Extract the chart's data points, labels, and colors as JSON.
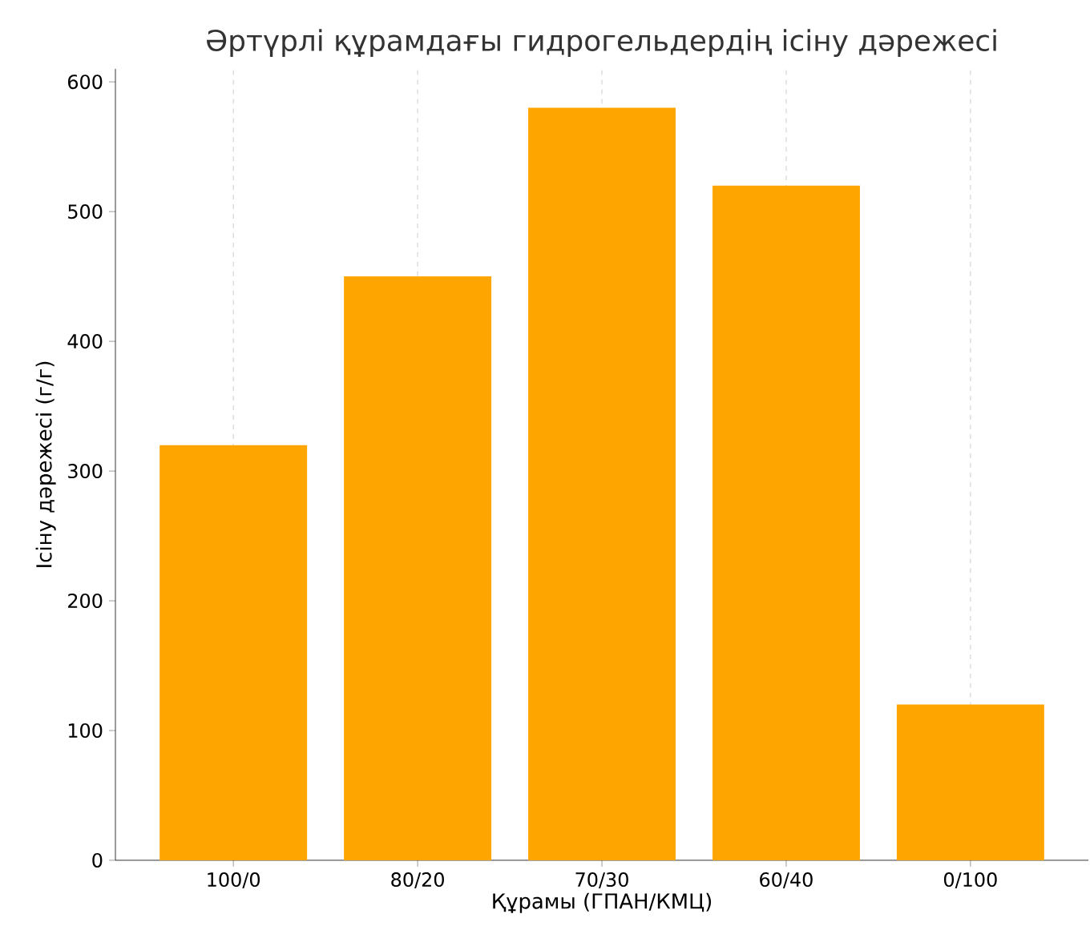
{
  "chart_data": {
    "type": "bar",
    "title": "Әртүрлі құрамдағы гидрогельдердің ісіну дәрежесі",
    "xlabel": "Құрамы (ГПАН/КМЦ)",
    "ylabel": "Ісіну дәрежесі (г/г)",
    "categories": [
      "100/0",
      "80/20",
      "70/30",
      "60/40",
      "0/100"
    ],
    "values": [
      320,
      450,
      580,
      520,
      120
    ],
    "color": "#ffa500",
    "ylim": [
      0,
      610
    ],
    "yticks": [
      0,
      100,
      200,
      300,
      400,
      500,
      600
    ],
    "grid": "x"
  }
}
